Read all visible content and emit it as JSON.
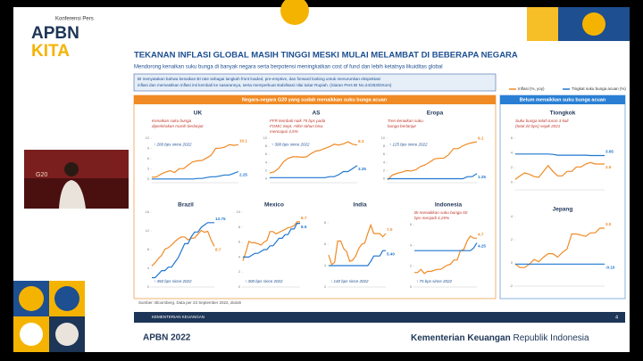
{
  "header": {
    "kicker": "Konferensi Pers",
    "brand_top": "APBN",
    "brand_bottom": "KITA"
  },
  "video": {
    "badge": "G20"
  },
  "slide": {
    "title": "TEKANAN INFLASI GLOBAL MASIH TINGGI MESKI MULAI MELAMBAT DI BEBERAPA NEGARA",
    "subtitle": "Mendorong kenaikan suku bunga di banyak negara serta berpotensi meningkatkan cost of fund dan lebih ketatnya likuiditas global",
    "quote": [
      "BI menyatakan bahwa kenaikan BI rate sebagai langkah front loaded, pre-emptive, dan forward looking untuk menurunkan ekspektasi",
      "inflasi dan memastikan inflasi inti kembali ke sasarannya, serta memperkuat stabilisasi nilai tukar Rupiah.  (Siaran Pers BI No.24/253/DKom)"
    ],
    "left_header": "Negara-negara G20 yang sudah menaikkan suku bunga acuan",
    "right_header": "Belum menaikkan suku bunga acuan",
    "source": "Sumber: Bloomberg. Data per 23 September 2022, diolah",
    "footer_org": "KEMENTERIAN KEUANGAN",
    "page": "4"
  },
  "legend": [
    {
      "name": "Inflasi (%, yoy)",
      "color": "#f08a24"
    },
    {
      "name": "Tingkat suku bunga acuan (%)",
      "color": "#1f77d0"
    }
  ],
  "panels": [
    {
      "title": "UK",
      "note": [
        "Kenaikan suku bunga",
        "diperkirakan masih berlanjut"
      ],
      "since": "↑ 200 bps since 2022",
      "ylim": [
        -1,
        12
      ],
      "yticks": [
        0,
        3,
        6,
        9,
        12
      ],
      "inflation": [
        0.6,
        0.7,
        1.5,
        2.1,
        2.5,
        2.0,
        3.1,
        3.1,
        4.2,
        5.1,
        5.4,
        5.5,
        6.2,
        7.0,
        9.0,
        9.1,
        9.4,
        10.1,
        9.9,
        10.1
      ],
      "inflation_label": "10.1",
      "rate": [
        0.1,
        0.1,
        0.1,
        0.1,
        0.1,
        0.1,
        0.1,
        0.1,
        0.1,
        0.1,
        0.25,
        0.25,
        0.5,
        0.75,
        0.75,
        1.0,
        1.25,
        1.25,
        1.75,
        2.25
      ],
      "rate_label": "2.25"
    },
    {
      "title": "AS",
      "note": [
        "FFR kembali naik 75 bps pada",
        "FOMC Sept. Akhir tahun bisa",
        "mencapai 4,5%"
      ],
      "since": "↑ 300 bps since 2022",
      "ylim": [
        -1,
        10
      ],
      "yticks": [
        0,
        2,
        4,
        6,
        8,
        10
      ],
      "inflation": [
        1.4,
        1.7,
        2.6,
        4.2,
        5.0,
        5.4,
        5.4,
        5.3,
        5.4,
        6.2,
        6.8,
        7.0,
        7.5,
        7.9,
        8.5,
        8.3,
        8.6,
        9.1,
        8.5,
        8.3
      ],
      "inflation_label": "8.3",
      "rate": [
        0.25,
        0.25,
        0.25,
        0.25,
        0.25,
        0.25,
        0.25,
        0.25,
        0.25,
        0.25,
        0.25,
        0.25,
        0.25,
        0.5,
        0.5,
        1.0,
        1.75,
        1.75,
        2.5,
        3.25
      ],
      "rate_label": "3.25"
    },
    {
      "title": "Eropa",
      "note": [
        "Tren kenaikan suku",
        "bunga berlanjut"
      ],
      "since": "↑ 125 bps since 2022",
      "ylim": [
        -1,
        10
      ],
      "yticks": [
        0,
        2,
        4,
        6,
        8,
        10
      ],
      "inflation": [
        -0.3,
        0.9,
        1.3,
        1.6,
        2.0,
        1.9,
        2.2,
        3.0,
        3.4,
        4.1,
        4.9,
        5.0,
        5.1,
        5.9,
        7.4,
        7.4,
        8.1,
        8.6,
        8.9,
        9.1
      ],
      "inflation_label": "9.1",
      "rate": [
        0,
        0,
        0,
        0,
        0,
        0,
        0,
        0,
        0,
        0,
        0,
        0,
        0,
        0,
        0,
        0,
        0,
        0.5,
        0.5,
        1.25
      ],
      "rate_label": "1.25"
    },
    {
      "title": "Brazil",
      "note": [],
      "since": "↑ 450 bps since 2022",
      "ylim": [
        0,
        16
      ],
      "yticks": [
        0,
        4,
        8,
        12,
        16
      ],
      "inflation": [
        4.5,
        5.2,
        6.1,
        6.8,
        8.1,
        8.4,
        9.0,
        9.7,
        10.3,
        10.7,
        10.7,
        10.1,
        10.4,
        10.5,
        11.3,
        12.1,
        11.7,
        11.9,
        10.1,
        8.7
      ],
      "inflation_label": "8.7",
      "rate": [
        2.0,
        2.0,
        2.75,
        3.5,
        3.5,
        4.25,
        4.25,
        5.25,
        6.25,
        7.75,
        9.25,
        9.25,
        10.75,
        11.75,
        11.75,
        12.75,
        13.25,
        13.75,
        13.75,
        13.75
      ],
      "rate_label": "13.75"
    },
    {
      "title": "Mexico",
      "note": [],
      "since": "↑ 300 bps since 2022",
      "ylim": [
        0,
        10
      ],
      "yticks": [
        0,
        2,
        4,
        6,
        8,
        10
      ],
      "inflation": [
        3.5,
        4.7,
        6.1,
        5.9,
        5.9,
        5.8,
        5.6,
        6.0,
        6.2,
        7.4,
        7.4,
        7.1,
        7.3,
        7.5,
        7.7,
        7.9,
        8.0,
        8.2,
        8.7,
        8.7
      ],
      "inflation_label": "8.7",
      "rate": [
        4.0,
        4.0,
        4.0,
        4.25,
        4.5,
        4.5,
        4.75,
        5.0,
        5.0,
        5.5,
        5.5,
        6.0,
        6.5,
        6.5,
        7.0,
        7.0,
        7.75,
        7.75,
        8.5,
        8.5
      ],
      "rate_label": "8.5"
    },
    {
      "title": "India",
      "note": [],
      "since": "↑ 140 bps since 2022",
      "ylim": [
        2,
        9
      ],
      "yticks": [
        2,
        4,
        6,
        8
      ],
      "inflation": [
        5.0,
        4.1,
        4.3,
        6.3,
        6.3,
        5.6,
        5.3,
        4.4,
        4.5,
        4.9,
        5.6,
        6.0,
        6.1,
        7.0,
        7.8,
        7.0,
        7.0,
        7.0,
        6.7,
        7.0
      ],
      "inflation_label": "7.0",
      "rate": [
        4.0,
        4.0,
        4.0,
        4.0,
        4.0,
        4.0,
        4.0,
        4.0,
        4.0,
        4.0,
        4.0,
        4.0,
        4.0,
        4.0,
        4.4,
        4.9,
        4.9,
        4.9,
        5.4,
        5.4
      ],
      "rate_label": "5.40"
    },
    {
      "title": "Indonesia",
      "note": [
        "BI menaikkan suku bunga 50",
        "bps menjadi 4,25%"
      ],
      "since": "↑ 75 bps since 2022",
      "ylim": [
        0,
        6
      ],
      "yticks": [
        0,
        2,
        4,
        6
      ],
      "inflation": [
        1.4,
        1.4,
        1.7,
        1.3,
        1.5,
        1.5,
        1.6,
        1.7,
        1.7,
        1.9,
        2.1,
        2.2,
        2.6,
        2.6,
        3.5,
        3.6,
        4.4,
        4.9,
        4.7,
        4.7
      ],
      "inflation_label": "4.7",
      "rate": [
        3.5,
        3.5,
        3.5,
        3.5,
        3.5,
        3.5,
        3.5,
        3.5,
        3.5,
        3.5,
        3.5,
        3.5,
        3.5,
        3.5,
        3.5,
        3.5,
        3.5,
        3.5,
        3.75,
        4.25
      ],
      "rate_label": "4.25"
    },
    {
      "title": "Tiongkok",
      "note": [
        "Suku bunga telah turun 3 kali",
        "(total 20 bps) sejak 2021"
      ],
      "since": null,
      "ylim": [
        -1,
        6
      ],
      "yticks": [
        0,
        2,
        4,
        6
      ],
      "inflation": [
        0.4,
        0.9,
        1.3,
        1.1,
        0.8,
        0.7,
        1.5,
        2.3,
        1.5,
        0.9,
        0.9,
        1.5,
        1.5,
        2.1,
        2.1,
        2.5,
        2.7,
        2.5,
        2.5,
        2.5
      ],
      "inflation_label": "2.5",
      "rate": [
        3.85,
        3.85,
        3.85,
        3.85,
        3.85,
        3.85,
        3.85,
        3.85,
        3.8,
        3.7,
        3.7,
        3.7,
        3.7,
        3.7,
        3.7,
        3.7,
        3.65,
        3.65,
        3.65,
        3.65
      ],
      "rate_label": "3.65"
    },
    {
      "title": "Jepang",
      "note": [],
      "since": null,
      "ylim": [
        -2,
        4
      ],
      "yticks": [
        -2,
        0,
        2,
        4
      ],
      "inflation": [
        -0.1,
        -0.4,
        -0.4,
        -0.1,
        0.3,
        0.1,
        0.5,
        0.8,
        0.8,
        0.5,
        0.9,
        1.2,
        2.5,
        2.5,
        2.4,
        2.3,
        2.6,
        2.6,
        3.0,
        3.0
      ],
      "inflation_label": "3.0",
      "rate": [
        -0.1,
        -0.1,
        -0.1,
        -0.1,
        -0.1,
        -0.1,
        -0.1,
        -0.1,
        -0.1,
        -0.1,
        -0.1,
        -0.1,
        -0.1,
        -0.1,
        -0.1,
        -0.1,
        -0.1,
        -0.1,
        -0.1,
        -0.1
      ],
      "rate_label": "-0.10"
    }
  ],
  "footer": {
    "left": "APBN 2022",
    "right_bold": "Kementerian Keuangan",
    "right_light": "Republik Indonesia"
  }
}
